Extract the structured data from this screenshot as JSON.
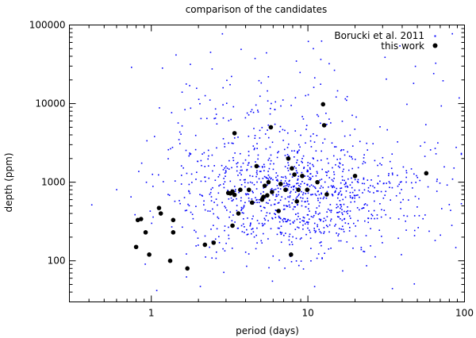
{
  "chart_data": {
    "type": "scatter",
    "title": "comparison of the candidates",
    "xlabel": "period (days)",
    "ylabel": "depth (ppm)",
    "xscale": "log",
    "yscale": "log",
    "xlim": [
      0.3,
      100
    ],
    "ylim": [
      30,
      100000
    ],
    "x_ticks": [
      {
        "value": 1,
        "label": "1"
      },
      {
        "value": 10,
        "label": "10"
      },
      {
        "value": 100,
        "label": "100"
      }
    ],
    "y_ticks": [
      {
        "value": 100,
        "label": "100"
      },
      {
        "value": 1000,
        "label": "1000"
      },
      {
        "value": 10000,
        "label": "10000"
      },
      {
        "value": 100000,
        "label": "100000"
      }
    ],
    "grid": false,
    "legend_position": "top-right",
    "series": [
      {
        "name": "Borucki et al. 2011",
        "color": "#0000ff",
        "marker": "small-dot",
        "point_count": 1200,
        "note": "dense cloud of points; sampled procedurally from the visible distribution"
      },
      {
        "name": "this work",
        "color": "#000000",
        "marker": "filled-circle",
        "points": [
          [
            0.8,
            150
          ],
          [
            0.82,
            330
          ],
          [
            0.86,
            340
          ],
          [
            0.92,
            230
          ],
          [
            0.97,
            120
          ],
          [
            1.12,
            470
          ],
          [
            1.15,
            400
          ],
          [
            1.32,
            100
          ],
          [
            1.38,
            230
          ],
          [
            1.38,
            330
          ],
          [
            1.7,
            80
          ],
          [
            2.2,
            160
          ],
          [
            2.5,
            170
          ],
          [
            3.1,
            730
          ],
          [
            3.2,
            720
          ],
          [
            3.3,
            760
          ],
          [
            3.3,
            280
          ],
          [
            3.4,
            690
          ],
          [
            3.4,
            4200
          ],
          [
            3.6,
            400
          ],
          [
            3.7,
            800
          ],
          [
            4.2,
            800
          ],
          [
            4.4,
            550
          ],
          [
            4.7,
            1600
          ],
          [
            5.1,
            600
          ],
          [
            5.2,
            650
          ],
          [
            5.3,
            900
          ],
          [
            5.5,
            680
          ],
          [
            5.6,
            1000
          ],
          [
            5.8,
            5000
          ],
          [
            5.9,
            750
          ],
          [
            6.5,
            430
          ],
          [
            6.7,
            950
          ],
          [
            7.2,
            800
          ],
          [
            7.5,
            2000
          ],
          [
            7.8,
            120
          ],
          [
            7.9,
            1500
          ],
          [
            8.2,
            1250
          ],
          [
            8.5,
            570
          ],
          [
            8.7,
            800
          ],
          [
            9.2,
            1200
          ],
          [
            9.9,
            800
          ],
          [
            11.5,
            1000
          ],
          [
            12.5,
            9800
          ],
          [
            12.7,
            5300
          ],
          [
            13.2,
            700
          ],
          [
            20,
            1200
          ],
          [
            57,
            1300
          ]
        ]
      }
    ]
  }
}
